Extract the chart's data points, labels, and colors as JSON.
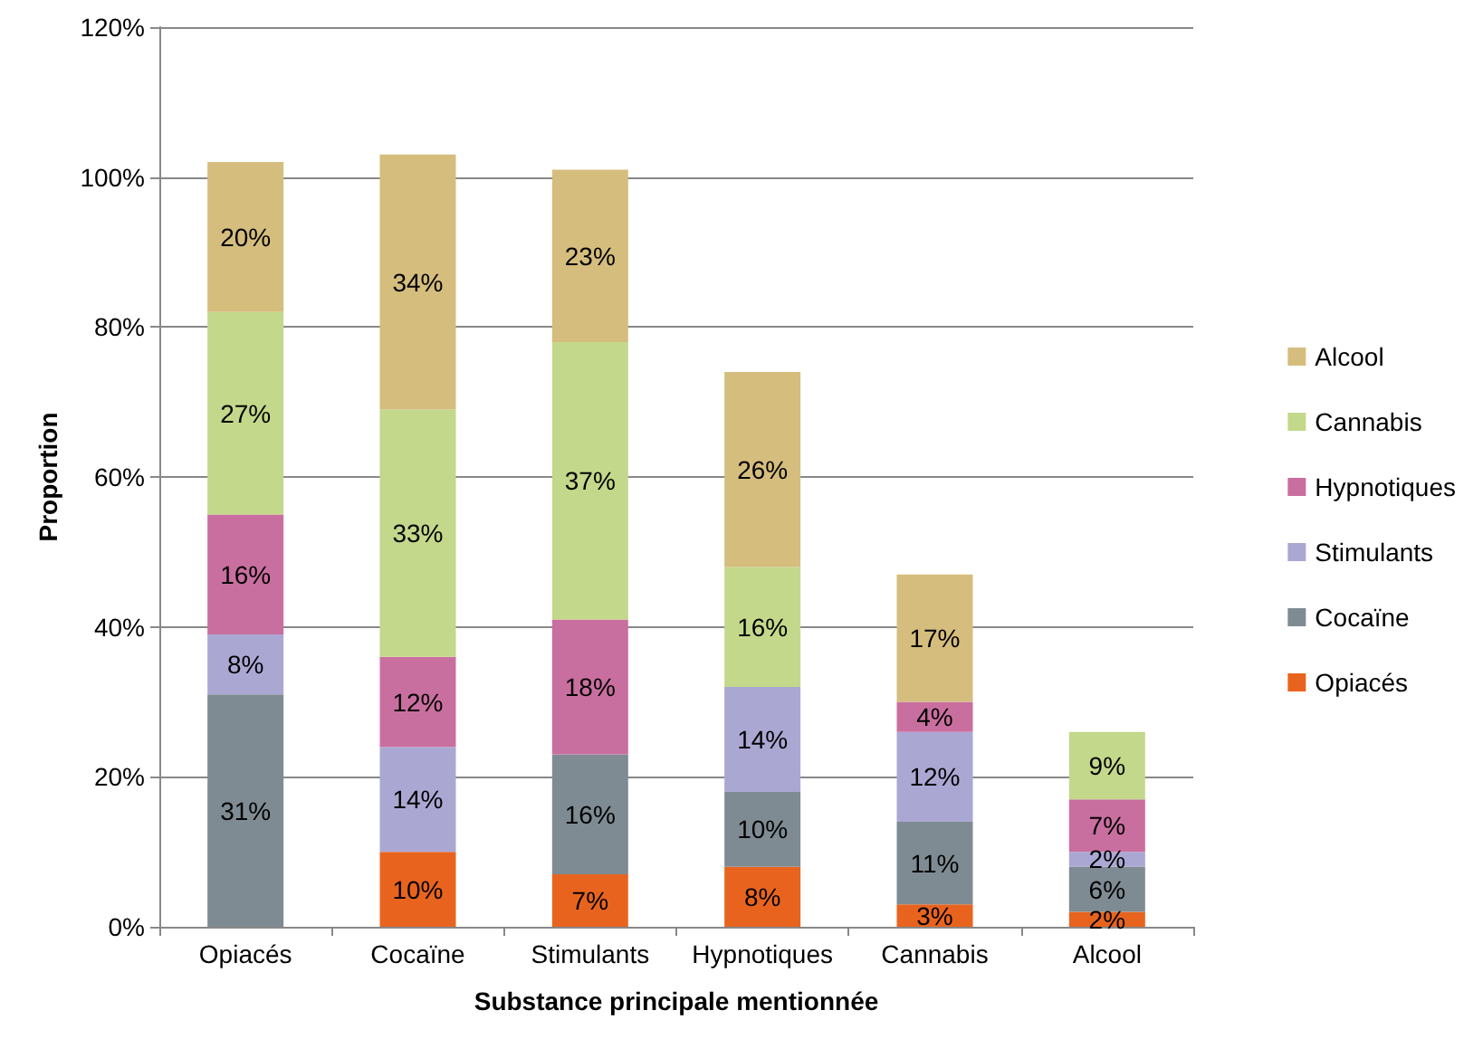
{
  "chart_data": {
    "type": "bar",
    "stacked": true,
    "xlabel": "Substance principale mentionnée",
    "ylabel": "Proportion",
    "categories": [
      "Opiacés",
      "Cocaïne",
      "Stimulants",
      "Hypnotiques",
      "Cannabis",
      "Alcool"
    ],
    "series": [
      {
        "name": "Opiacés",
        "color": "#e8641e",
        "values": [
          null,
          10,
          7,
          8,
          3,
          2
        ],
        "value_labels": [
          null,
          "10%",
          "7%",
          "8%",
          "3%",
          "2%"
        ]
      },
      {
        "name": "Cocaïne",
        "color": "#7f8b93",
        "values": [
          31,
          null,
          16,
          10,
          11,
          6
        ],
        "value_labels": [
          "31%",
          null,
          "16%",
          "10%",
          "11%",
          "6%"
        ]
      },
      {
        "name": "Stimulants",
        "color": "#aba7d3",
        "values": [
          8,
          14,
          null,
          14,
          12,
          2
        ],
        "value_labels": [
          "8%",
          "14%",
          null,
          "14%",
          "12%",
          "2%"
        ]
      },
      {
        "name": "Hypnotiques",
        "color": "#c96f9f",
        "values": [
          16,
          12,
          18,
          null,
          4,
          7
        ],
        "value_labels": [
          "16%",
          "12%",
          "18%",
          null,
          "4%",
          "7%"
        ]
      },
      {
        "name": "Cannabis",
        "color": "#c3d88a",
        "values": [
          27,
          33,
          37,
          16,
          null,
          9
        ],
        "value_labels": [
          "27%",
          "33%",
          "37%",
          "16%",
          null,
          "9%"
        ]
      },
      {
        "name": "Alcool",
        "color": "#d5bd7d",
        "values": [
          20,
          34,
          23,
          26,
          17,
          null
        ],
        "value_labels": [
          "20%",
          "34%",
          "23%",
          "26%",
          "17%",
          null
        ]
      }
    ],
    "ylim": [
      0,
      120
    ],
    "yticks": [
      {
        "value": 0,
        "label": "0%"
      },
      {
        "value": 20,
        "label": "20%"
      },
      {
        "value": 40,
        "label": "40%"
      },
      {
        "value": 60,
        "label": "60%"
      },
      {
        "value": 80,
        "label": "80%"
      },
      {
        "value": 100,
        "label": "100%"
      },
      {
        "value": 120,
        "label": "120%"
      }
    ],
    "grid": "y",
    "legend": "right"
  }
}
